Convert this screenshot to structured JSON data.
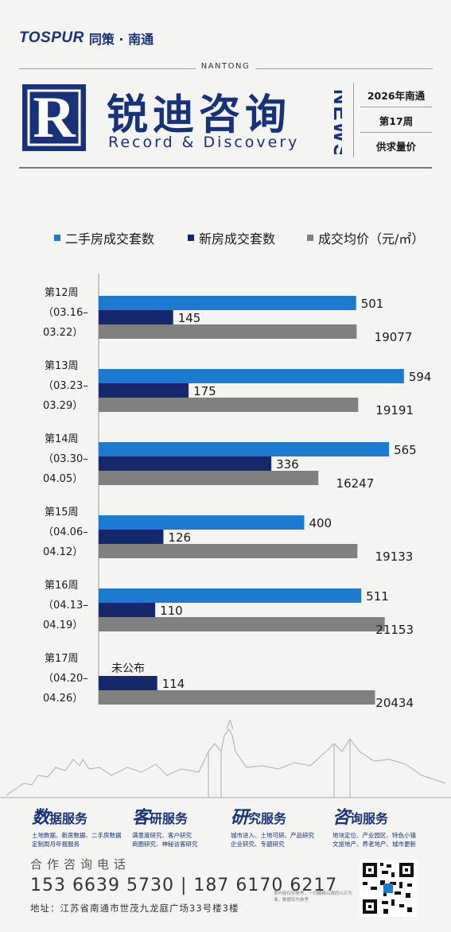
{
  "brand": {
    "logo_text": "TOSPUR",
    "cn": "同策 · 南通"
  },
  "header": {
    "city_en": "NANTONG",
    "masthead_cn": "锐迪咨询",
    "masthead_en": "Record & Discovery",
    "news": "NEWS",
    "issue_year": "2026年南通",
    "issue_week": "第17周",
    "issue_topic": "供求量价"
  },
  "legend": {
    "items": [
      {
        "label": "二手房成交套数",
        "color": "#1b7bd0"
      },
      {
        "label": "新房成交套数",
        "color": "#14286b"
      },
      {
        "label": "成交均价（元/㎡）",
        "color": "#808080"
      }
    ]
  },
  "chart_data": {
    "type": "bar",
    "orientation": "horizontal",
    "categories": [
      {
        "week": "第12周",
        "range_start": "（03.16–",
        "range_end": "03.22）"
      },
      {
        "week": "第13周",
        "range_start": "（03.23–",
        "range_end": "03.29）"
      },
      {
        "week": "第14周",
        "range_start": "（03.30–",
        "range_end": "04.05）"
      },
      {
        "week": "第15周",
        "range_start": "（04.06–",
        "range_end": "04.12）"
      },
      {
        "week": "第16周",
        "range_start": "（04.13–",
        "range_end": "04.19）"
      },
      {
        "week": "第17周",
        "range_start": "（04.20–",
        "range_end": "04.26）"
      }
    ],
    "series": [
      {
        "name": "二手房成交套数",
        "color": "#1b7bd0",
        "values": [
          501,
          594,
          565,
          400,
          511,
          null
        ],
        "max": 650
      },
      {
        "name": "新房成交套数",
        "color": "#14286b",
        "values": [
          145,
          175,
          336,
          126,
          110,
          114
        ],
        "max": 650
      },
      {
        "name": "成交均价（元/㎡）",
        "color": "#808080",
        "values": [
          19077,
          19191,
          16247,
          19133,
          21153,
          20434
        ],
        "max": 24700
      }
    ],
    "missing_label": "未公布"
  },
  "footer": {
    "services": [
      {
        "big": "数",
        "title": "据服务",
        "lines": [
          "土地数据、新房数据、二手房数据",
          "定制周月年报服务"
        ]
      },
      {
        "big": "客",
        "title": "研服务",
        "lines": [
          "满意度研究、客户研究",
          "商圈研究、神秘访客研究"
        ]
      },
      {
        "big": "研",
        "title": "究服务",
        "lines": [
          "城市进入、土地可研、产品研究",
          "企业研究、专题研究"
        ]
      },
      {
        "big": "咨",
        "title": "询服务",
        "lines": [
          "地块定位、产业园区、特色小镇",
          "文旅地产、养老地产、城市更新"
        ]
      }
    ],
    "hotline_label": "合作咨询电话",
    "phones": "153 6639 5730 | 187 6170 6217",
    "address": "地址：江苏省南通市世茂九龙庭广场33号楼3楼",
    "fine_print": [
      "本内容仅供参考，一切解释以政府公示为",
      "准，数据仅为参考"
    ]
  }
}
